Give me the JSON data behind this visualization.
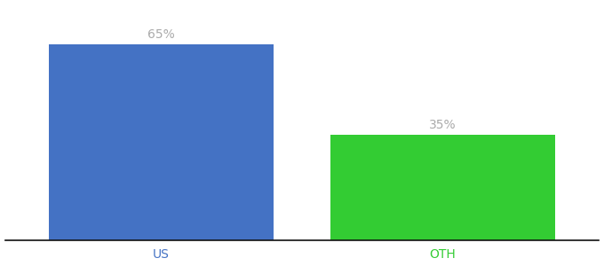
{
  "categories": [
    "US",
    "OTH"
  ],
  "values": [
    65,
    35
  ],
  "bar_colors": [
    "#4472c4",
    "#33cc33"
  ],
  "value_labels": [
    "65%",
    "35%"
  ],
  "ylim": [
    0,
    78
  ],
  "xlim": [
    -0.05,
    1.85
  ],
  "background_color": "#ffffff",
  "label_color": "#aaaaaa",
  "label_fontsize": 10,
  "tick_fontsize": 10,
  "bar_width": 0.72,
  "bar_positions": [
    0.45,
    1.35
  ]
}
